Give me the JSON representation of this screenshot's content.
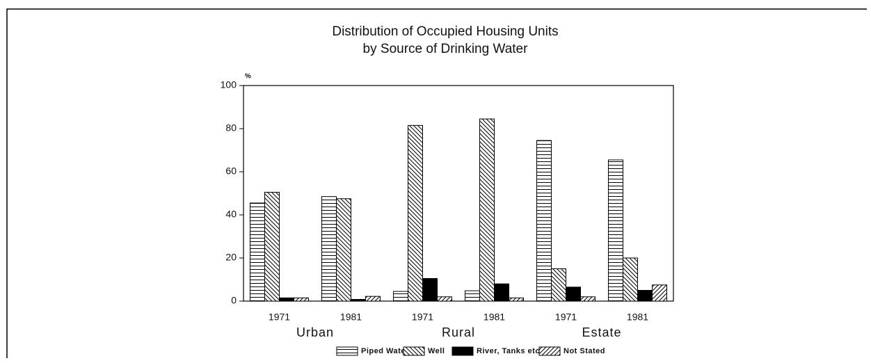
{
  "chart_data": {
    "type": "bar",
    "title": "Distribution of Occupied Housing Units",
    "subtitle": "by Source of Drinking Water",
    "y_label": "%",
    "categories": [
      "1971",
      "1981",
      "1971",
      "1981",
      "1971",
      "1981"
    ],
    "groups": [
      "Urban",
      "Rural",
      "Estate"
    ],
    "series": [
      {
        "name": "Piped Water",
        "color": "#000000",
        "pattern": "horizontal",
        "values": [
          45.5,
          48.5,
          4.5,
          4.8,
          74.5,
          65.5
        ]
      },
      {
        "name": "Well",
        "color": "#000000",
        "pattern": "backslash",
        "values": [
          50.5,
          47.5,
          81.5,
          84.5,
          15,
          20
        ]
      },
      {
        "name": "River, Tanks etc..",
        "color": "#000000",
        "pattern": "solid",
        "values": [
          1.5,
          0.8,
          10.5,
          8,
          6.5,
          5
        ]
      },
      {
        "name": "Not Stated",
        "color": "#000000",
        "pattern": "slash",
        "values": [
          1.5,
          2.2,
          2,
          1.5,
          2,
          7.5
        ]
      }
    ],
    "ylim": [
      0,
      100
    ],
    "yticks": [
      0,
      20,
      40,
      60,
      80,
      100
    ],
    "grid": false,
    "legend": "bottom"
  }
}
